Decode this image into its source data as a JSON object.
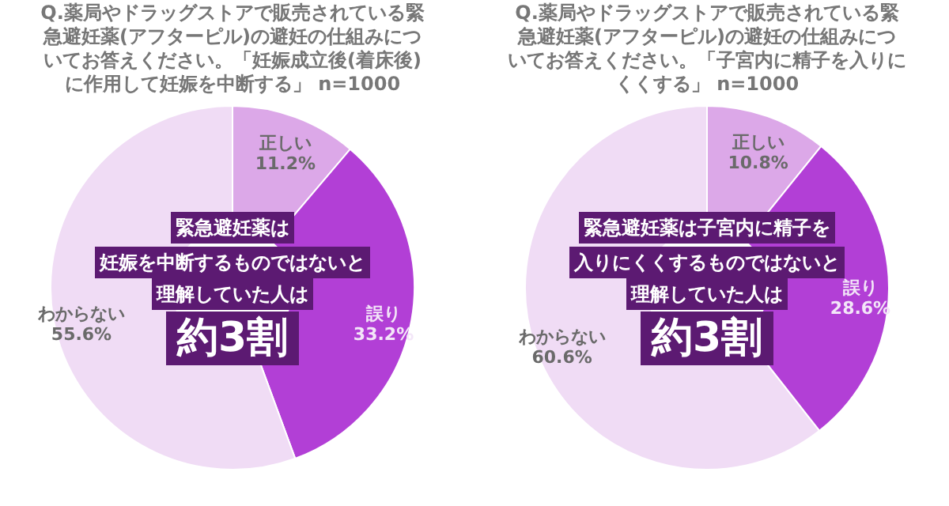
{
  "chart_data": [
    {
      "type": "donut",
      "title": "Q.薬局やドラッグストアで販売されている緊急避妊薬(アフターピル)の避妊の仕組みについてお答えください。「妊娠成立後(着床後)に作用して妊娠を中断する」 n=1000",
      "categories": [
        "正しい",
        "誤り",
        "わからない"
      ],
      "values": [
        11.2,
        33.2,
        55.6
      ],
      "value_labels": [
        "11.2%",
        "33.2%",
        "55.6%"
      ],
      "colors": [
        "#dca8e8",
        "#b23fd6",
        "#f0dcf5"
      ],
      "annotations": [
        "緊急避妊薬は",
        "妊娠を中断するものではないと",
        "理解していた人は",
        "約3割"
      ]
    },
    {
      "type": "donut",
      "title": "Q.薬局やドラッグストアで販売されている緊急避妊薬(アフターピル)の避妊の仕組みについてお答えください。「子宮内に精子を入りにくくする」 n=1000",
      "categories": [
        "正しい",
        "誤り",
        "わからない"
      ],
      "values": [
        10.8,
        28.6,
        60.6
      ],
      "value_labels": [
        "10.8%",
        "28.6%",
        "60.6%"
      ],
      "colors": [
        "#dca8e8",
        "#b23fd6",
        "#f0dcf5"
      ],
      "annotations": [
        "緊急避妊薬は子宮内に精子を",
        "入りにくくするものではないと",
        "理解していた人は",
        "約3割"
      ]
    }
  ]
}
